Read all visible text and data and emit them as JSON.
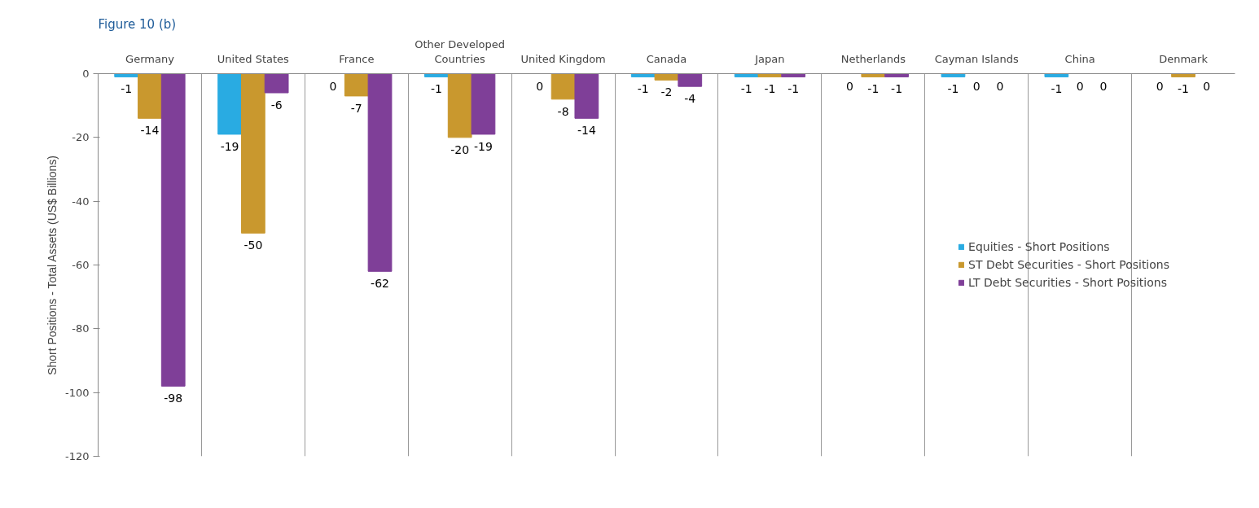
{
  "chart_data": {
    "type": "bar",
    "title": "Figure 10 (b)",
    "ylabel": "Short Positions - Total Assets (US$ Billions)",
    "categories": [
      "Germany",
      "United States",
      "France",
      "Other Developed Countries",
      "United Kingdom",
      "Canada",
      "Japan",
      "Netherlands",
      "Cayman Islands",
      "China",
      "Denmark"
    ],
    "series": [
      {
        "name": "Equities - Short Positions",
        "color": "#29abe2",
        "values": [
          -1,
          -19,
          0,
          -1,
          0,
          -1,
          -1,
          0,
          -1,
          -1,
          0
        ]
      },
      {
        "name": "ST Debt Securities - Short Positions",
        "color": "#c9982e",
        "values": [
          -14,
          -50,
          -7,
          -20,
          -8,
          -2,
          -1,
          -1,
          0,
          0,
          -1
        ]
      },
      {
        "name": "LT Debt Securities - Short Positions",
        "color": "#7f3f98",
        "values": [
          -98,
          -6,
          -62,
          -19,
          -14,
          -4,
          -1,
          -1,
          0,
          0,
          0
        ]
      }
    ],
    "ylim": [
      -120,
      0
    ],
    "yticks": [
      -120,
      -100,
      -80,
      -60,
      -40,
      -20,
      0
    ],
    "grid": "x",
    "legend": "right",
    "data_labels": true
  }
}
